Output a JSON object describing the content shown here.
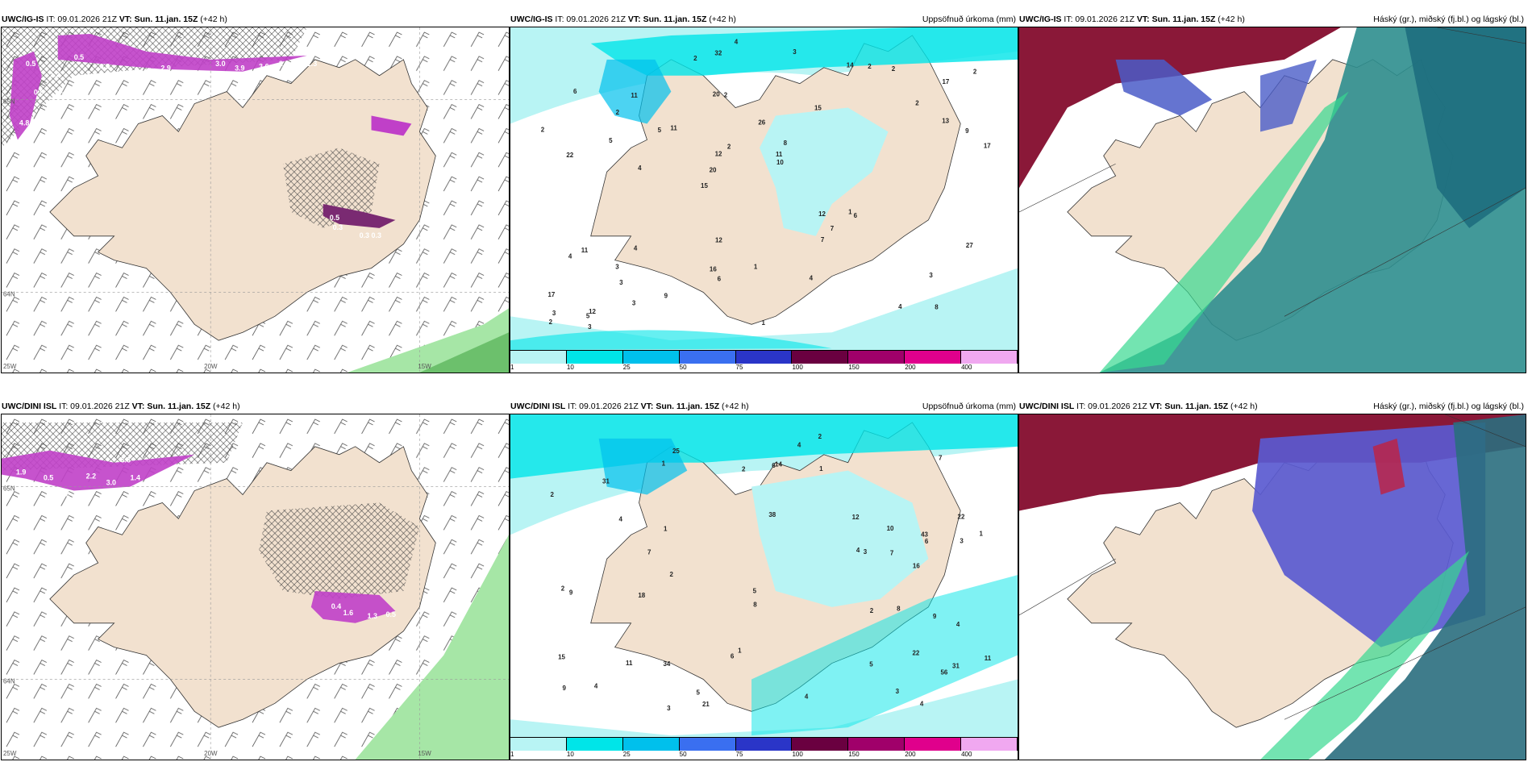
{
  "rows": [
    {
      "model": "UWC/IG-IS",
      "it": "IT: 09.01.2026 21Z",
      "vt": "VT: Sun. 11.jan. 15Z",
      "lead": "(+42 h)"
    },
    {
      "model": "UWC/DINI ISL",
      "it": "IT: 09.01.2026 21Z",
      "vt": "VT: Sun. 11.jan. 15Z",
      "lead": "(+42 h)"
    }
  ],
  "panel_titles": {
    "precip": "Uppsöfnuð úrkoma (mm)",
    "clouds": "Háský (gr.), miðský (fj.bl.) og lágský (bl.)"
  },
  "axis_labels": {
    "lat_65": "65N",
    "lat_64": "64N",
    "lon_25": "25W",
    "lon_20": "20W",
    "lon_15": "15W"
  },
  "colorbar": {
    "labels": [
      "1",
      "10",
      "25",
      "50",
      "75",
      "100",
      "150",
      "200",
      "400"
    ],
    "colors": [
      "#b8f4f4",
      "#00e5e8",
      "#00c0ec",
      "#3a6ff0",
      "#2a35c8",
      "#6a0040",
      "#a0006a",
      "#e0008c",
      "#f0a8f0"
    ]
  },
  "precip_top_values": [
    "8",
    "22",
    "17",
    "15",
    "15",
    "12",
    "20",
    "26",
    "11",
    "11",
    "17",
    "3",
    "2",
    "8",
    "6",
    "6",
    "32",
    "17",
    "12",
    "13",
    "20",
    "16",
    "12",
    "11",
    "14",
    "4",
    "4",
    "3",
    "1",
    "1",
    "5",
    "5",
    "7",
    "3",
    "9",
    "11",
    "3",
    "6",
    "10",
    "4",
    "2",
    "2",
    "7",
    "4",
    "3",
    "3",
    "2",
    "1",
    "2",
    "4",
    "4",
    "2",
    "2",
    "2",
    "5",
    "3",
    "2",
    "2",
    "27",
    "12",
    "9"
  ],
  "precip_bot_values": [
    "22",
    "22",
    "31",
    "38",
    "9",
    "25",
    "43",
    "34",
    "7",
    "4",
    "3",
    "2",
    "16",
    "21",
    "15",
    "31",
    "56",
    "1",
    "1",
    "6",
    "2",
    "9",
    "4",
    "4",
    "5",
    "6",
    "4",
    "1",
    "12",
    "11",
    "18",
    "5",
    "3",
    "5",
    "9",
    "3",
    "3",
    "2",
    "4",
    "2",
    "8",
    "7",
    "6",
    "7",
    "4",
    "2",
    "4",
    "2",
    "1",
    "10",
    "11",
    "8",
    "14",
    "1"
  ],
  "wind_top_values": [
    "0.5",
    "0.5",
    "1.2",
    "0.5",
    "2.9",
    "3.0",
    "3.9",
    "3.6",
    "2.3",
    "2.6",
    "0.9",
    "2.7",
    "4.8",
    "0.5",
    "0.3",
    "0.3",
    "0.3",
    "1.3"
  ],
  "wind_bot_values": [
    "1.9",
    "0.5",
    "1.2",
    "2.2",
    "3.0",
    "1.4",
    "3.3",
    "1.6",
    "0.4",
    "1.3",
    "0.5"
  ]
}
